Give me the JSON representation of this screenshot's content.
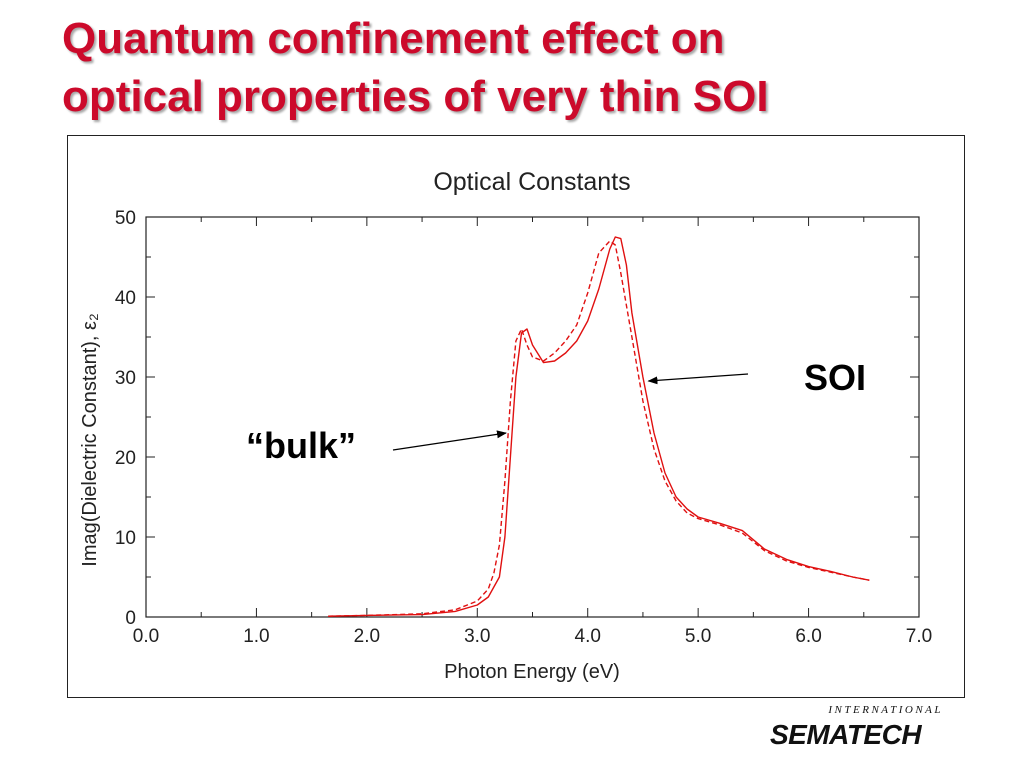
{
  "slide": {
    "title_lines": [
      "Quantum confinement effect on",
      "optical properties of very thin SOI"
    ],
    "logo": {
      "top": "INTERNATIONAL",
      "main": "SEMATECH"
    },
    "colors": {
      "title": "#cc0a2b",
      "curve": "#e01010"
    }
  },
  "chart_data": {
    "type": "line",
    "title": "Optical Constants",
    "xlabel": "Photon Energy (eV)",
    "ylabel": "Imag(Dielectric Constant), ε₂",
    "xlim": [
      0,
      7
    ],
    "ylim": [
      0,
      50
    ],
    "xticks": [
      "0.0",
      "1.0",
      "2.0",
      "3.0",
      "4.0",
      "5.0",
      "6.0",
      "7.0"
    ],
    "yticks": [
      "0",
      "10",
      "20",
      "30",
      "40",
      "50"
    ],
    "series": [
      {
        "name": "SOI",
        "style": "solid",
        "x": [
          1.65,
          2.0,
          2.5,
          2.8,
          3.0,
          3.1,
          3.2,
          3.25,
          3.3,
          3.35,
          3.4,
          3.45,
          3.5,
          3.6,
          3.7,
          3.8,
          3.9,
          4.0,
          4.1,
          4.2,
          4.25,
          4.3,
          4.35,
          4.4,
          4.5,
          4.6,
          4.7,
          4.8,
          4.9,
          5.0,
          5.2,
          5.4,
          5.6,
          5.8,
          6.0,
          6.2,
          6.4,
          6.55
        ],
        "y": [
          0.1,
          0.2,
          0.3,
          0.7,
          1.5,
          2.5,
          5.0,
          10.0,
          20.0,
          30.0,
          35.5,
          36.0,
          34.0,
          31.8,
          32.0,
          33.0,
          34.5,
          37.0,
          41.0,
          46.0,
          47.5,
          47.3,
          44.0,
          38.0,
          30.0,
          23.0,
          18.0,
          15.0,
          13.5,
          12.5,
          11.7,
          10.8,
          8.5,
          7.2,
          6.3,
          5.7,
          5.0,
          4.6
        ]
      },
      {
        "name": "“bulk”",
        "style": "dashed",
        "x": [
          1.65,
          2.0,
          2.5,
          2.8,
          3.0,
          3.1,
          3.15,
          3.2,
          3.25,
          3.3,
          3.35,
          3.4,
          3.45,
          3.5,
          3.6,
          3.7,
          3.8,
          3.9,
          4.0,
          4.1,
          4.2,
          4.25,
          4.3,
          4.4,
          4.5,
          4.6,
          4.7,
          4.8,
          4.9,
          5.0,
          5.2,
          5.4,
          5.6,
          5.8,
          6.0,
          6.2,
          6.4,
          6.55
        ],
        "y": [
          0.1,
          0.2,
          0.4,
          0.9,
          2.0,
          3.5,
          5.5,
          9.0,
          17.0,
          27.0,
          34.5,
          36.0,
          34.0,
          32.5,
          32.0,
          33.0,
          34.5,
          36.5,
          40.5,
          45.5,
          47.0,
          46.5,
          43.0,
          35.0,
          27.0,
          21.0,
          17.0,
          14.5,
          13.0,
          12.3,
          11.5,
          10.5,
          8.3,
          7.0,
          6.2,
          5.6,
          5.0,
          4.6
        ]
      }
    ],
    "annotations": [
      {
        "text": "SOI",
        "points_to_x": 4.55,
        "points_to_y": 29.5
      },
      {
        "text": "“bulk”",
        "points_to_x": 3.26,
        "points_to_y": 23.0
      }
    ],
    "grid": false
  }
}
